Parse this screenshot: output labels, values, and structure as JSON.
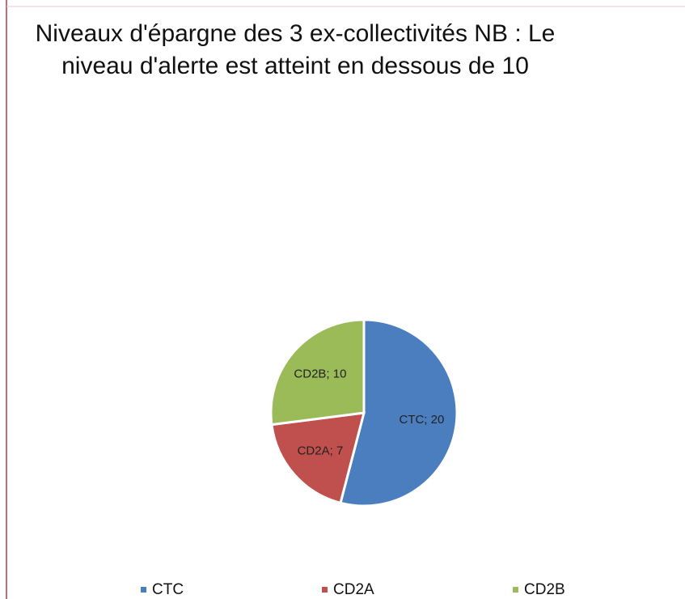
{
  "chart_data": {
    "type": "pie",
    "title": "Niveaux d'épargne des 3 ex-collectivités NB : Le niveau d'alerte est atteint en dessous de 10",
    "categories": [
      "CTC",
      "CD2A",
      "CD2B"
    ],
    "values": [
      20,
      7,
      10
    ],
    "value_labels": [
      "CTC; 20",
      "CD2A; 7",
      "CD2B; 10"
    ],
    "colors": [
      "#4a7ebf",
      "#c0504d",
      "#9bbb59"
    ],
    "legend": "bottom"
  }
}
